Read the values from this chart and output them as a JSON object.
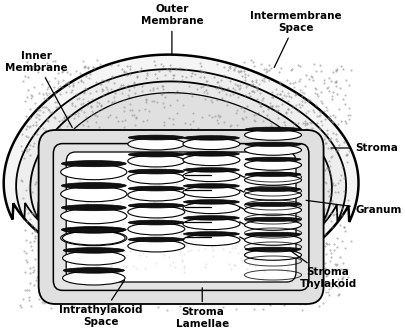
{
  "bg_color": "#ffffff",
  "line_color": "#000000",
  "stipple_color": "#aaaaaa",
  "stroma_fill": "#e0e0e0",
  "white": "#ffffff",
  "dark": "#222222",
  "labels": {
    "inner_membrane": "Inner\nMembrane",
    "outer_membrane": "Outer\nMembrane",
    "intermembrane_space": "Intermembrane\nSpace",
    "stroma": "Stroma",
    "granum": "Granum",
    "stroma_thylakoid": "Stroma\nThylakoid",
    "stroma_lamellae": "Stroma\nLamellae",
    "intrathylakoid_space": "Intrathylakoid\nSpace"
  }
}
